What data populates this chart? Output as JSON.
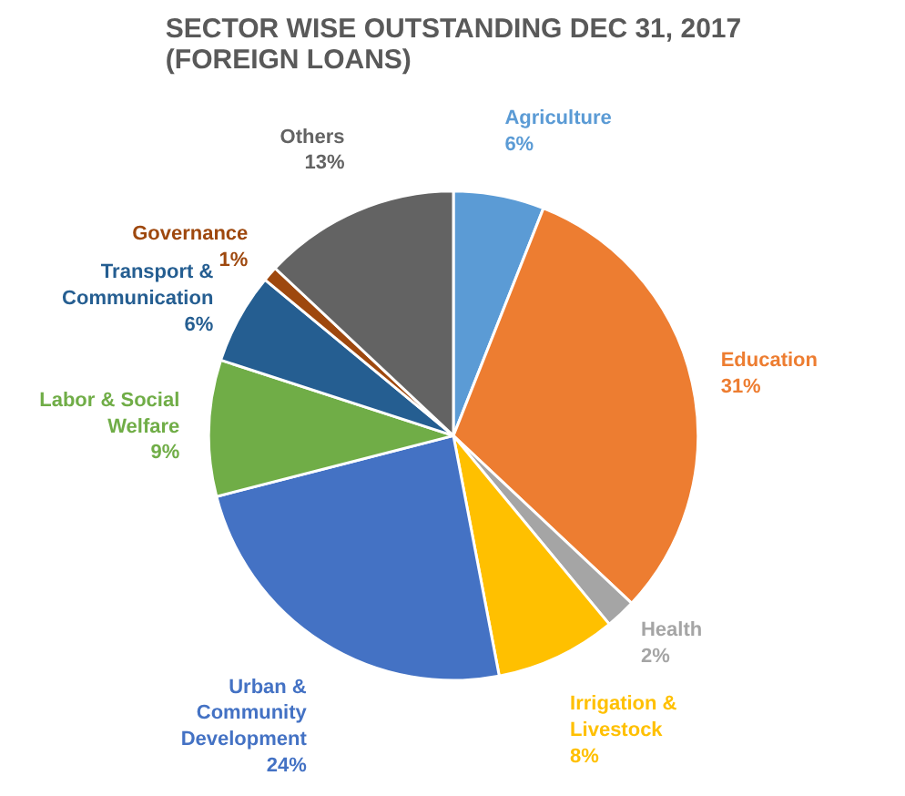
{
  "chart_data": {
    "type": "pie",
    "title": "SECTOR WISE OUTSTANDING DEC 31, 2017\n(FOREIGN LOANS)",
    "categories": [
      "Agriculture",
      "Education",
      "Health",
      "Irrigation &\nLivestock",
      "Urban &\nCommunity\nDevelopment",
      "Labor & Social\nWelfare",
      "Transport &\nCommunication",
      "Governance",
      "Others"
    ],
    "values": [
      6,
      31,
      2,
      8,
      24,
      9,
      6,
      1,
      13
    ],
    "value_labels": [
      "6%",
      "31%",
      "2%",
      "8%",
      "24%",
      "9%",
      "6%",
      "1%",
      "13%"
    ],
    "colors": [
      "#5b9bd5",
      "#ed7d31",
      "#a5a5a5",
      "#ffc000",
      "#4472c4",
      "#70ad47",
      "#255e91",
      "#9e480e",
      "#636363"
    ]
  }
}
